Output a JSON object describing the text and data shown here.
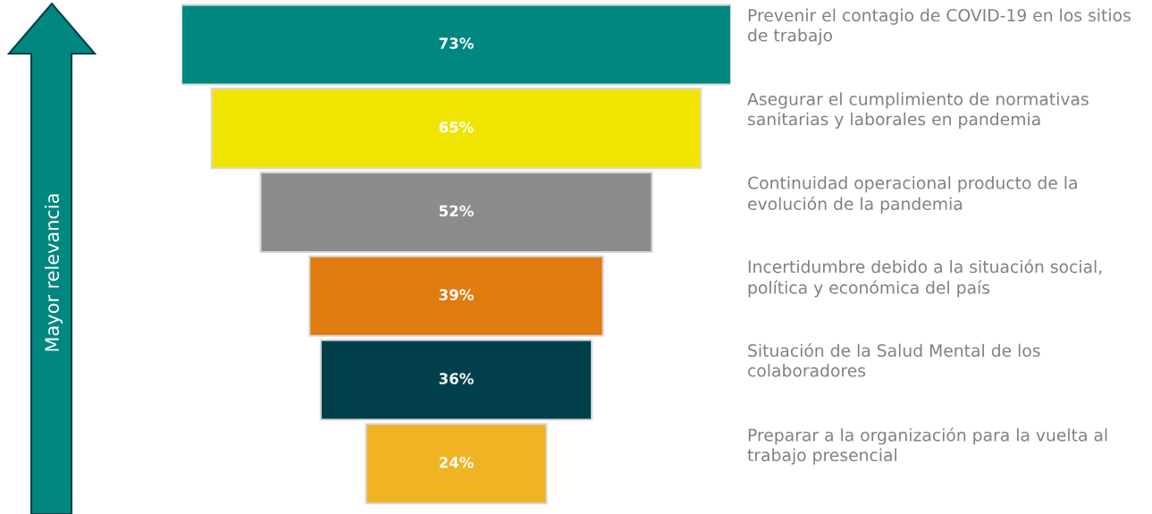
{
  "chart_data": {
    "type": "other",
    "categories": [
      "Prevenir el contagio de COVID-19 en los sitios de trabajo",
      "Asegurar el cumplimiento de normativas sanitarias y laborales en pandemia",
      "Continuidad operacional producto de la evolución de la pandemia",
      "Incertidumbre debido a la situación social, política y económica del país",
      "Situación de la Salud Mental de los colaboradores",
      "Preparar a la organización para la vuelta al trabajo presencial"
    ],
    "values": [
      73,
      65,
      52,
      39,
      36,
      24
    ],
    "value_labels": [
      "73%",
      "65%",
      "52%",
      "39%",
      "36%",
      "24%"
    ],
    "colors": [
      "#00877f",
      "#f0e500",
      "#8c8c8c",
      "#e07b10",
      "#00404a",
      "#f0b323"
    ],
    "annotations": [
      "Mayor relevancia"
    ]
  }
}
